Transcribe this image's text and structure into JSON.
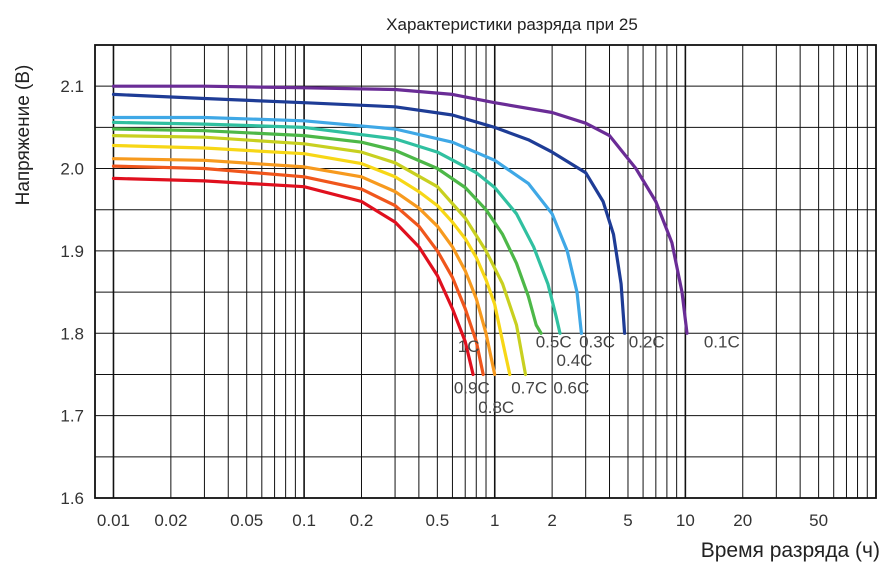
{
  "chart_data": {
    "type": "line",
    "title": "Характеристики разряда при 25",
    "xlabel": "Время разряда (ч)",
    "ylabel": "Напряжение (В)",
    "x_scale": "log",
    "xlim": [
      0.008,
      100
    ],
    "ylim": [
      1.6,
      2.15
    ],
    "grid": true,
    "legend": "none",
    "x_ticks": [
      {
        "v": 0.01,
        "label": "0.01"
      },
      {
        "v": 0.02,
        "label": "0.02"
      },
      {
        "v": 0.05,
        "label": "0.05"
      },
      {
        "v": 0.1,
        "label": "0.1"
      },
      {
        "v": 0.2,
        "label": "0.2"
      },
      {
        "v": 0.5,
        "label": "0.5"
      },
      {
        "v": 1,
        "label": "1"
      },
      {
        "v": 2,
        "label": "2"
      },
      {
        "v": 5,
        "label": "5"
      },
      {
        "v": 10,
        "label": "10"
      },
      {
        "v": 20,
        "label": "20"
      },
      {
        "v": 50,
        "label": "50"
      }
    ],
    "y_ticks": [
      {
        "v": 1.6,
        "label": "1.6"
      },
      {
        "v": 1.7,
        "label": "1.7"
      },
      {
        "v": 1.8,
        "label": "1.8"
      },
      {
        "v": 1.9,
        "label": "1.9"
      },
      {
        "v": 2.0,
        "label": "2.0"
      },
      {
        "v": 2.1,
        "label": "2.1"
      }
    ],
    "series": [
      {
        "name": "1C",
        "color": "#e0101e",
        "points": [
          [
            0.01,
            1.988
          ],
          [
            0.03,
            1.985
          ],
          [
            0.1,
            1.978
          ],
          [
            0.2,
            1.96
          ],
          [
            0.3,
            1.935
          ],
          [
            0.4,
            1.905
          ],
          [
            0.5,
            1.87
          ],
          [
            0.6,
            1.83
          ],
          [
            0.7,
            1.79
          ],
          [
            0.77,
            1.75
          ]
        ]
      },
      {
        "name": "0.9C",
        "color": "#f0561c",
        "points": [
          [
            0.01,
            2.003
          ],
          [
            0.03,
            2.0
          ],
          [
            0.1,
            1.99
          ],
          [
            0.2,
            1.975
          ],
          [
            0.3,
            1.955
          ],
          [
            0.4,
            1.93
          ],
          [
            0.5,
            1.9
          ],
          [
            0.6,
            1.868
          ],
          [
            0.7,
            1.83
          ],
          [
            0.8,
            1.79
          ],
          [
            0.87,
            1.75
          ]
        ]
      },
      {
        "name": "0.8C",
        "color": "#f79a1e",
        "points": [
          [
            0.01,
            2.012
          ],
          [
            0.03,
            2.01
          ],
          [
            0.1,
            2.002
          ],
          [
            0.2,
            1.99
          ],
          [
            0.3,
            1.972
          ],
          [
            0.4,
            1.952
          ],
          [
            0.5,
            1.93
          ],
          [
            0.6,
            1.905
          ],
          [
            0.7,
            1.876
          ],
          [
            0.8,
            1.842
          ],
          [
            0.9,
            1.8
          ],
          [
            1.0,
            1.75
          ]
        ]
      },
      {
        "name": "0.7C",
        "color": "#f7d716",
        "points": [
          [
            0.01,
            2.028
          ],
          [
            0.03,
            2.025
          ],
          [
            0.1,
            2.018
          ],
          [
            0.2,
            2.006
          ],
          [
            0.3,
            1.99
          ],
          [
            0.4,
            1.972
          ],
          [
            0.5,
            1.955
          ],
          [
            0.6,
            1.935
          ],
          [
            0.7,
            1.915
          ],
          [
            0.8,
            1.892
          ],
          [
            0.9,
            1.865
          ],
          [
            1.0,
            1.835
          ],
          [
            1.1,
            1.79
          ],
          [
            1.2,
            1.75
          ]
        ]
      },
      {
        "name": "0.6C",
        "color": "#c8d020",
        "points": [
          [
            0.01,
            2.04
          ],
          [
            0.03,
            2.038
          ],
          [
            0.1,
            2.03
          ],
          [
            0.2,
            2.02
          ],
          [
            0.3,
            2.007
          ],
          [
            0.5,
            1.978
          ],
          [
            0.7,
            1.94
          ],
          [
            0.9,
            1.9
          ],
          [
            1.1,
            1.86
          ],
          [
            1.3,
            1.81
          ],
          [
            1.45,
            1.75
          ]
        ]
      },
      {
        "name": "0.5C",
        "color": "#4db848",
        "points": [
          [
            0.01,
            2.048
          ],
          [
            0.03,
            2.046
          ],
          [
            0.1,
            2.04
          ],
          [
            0.2,
            2.032
          ],
          [
            0.3,
            2.022
          ],
          [
            0.5,
            2.0
          ],
          [
            0.7,
            1.977
          ],
          [
            0.9,
            1.95
          ],
          [
            1.1,
            1.92
          ],
          [
            1.3,
            1.885
          ],
          [
            1.5,
            1.845
          ],
          [
            1.65,
            1.81
          ],
          [
            1.75,
            1.8
          ]
        ]
      },
      {
        "name": "0.4C",
        "color": "#30c0a0",
        "points": [
          [
            0.01,
            2.056
          ],
          [
            0.03,
            2.054
          ],
          [
            0.1,
            2.05
          ],
          [
            0.3,
            2.036
          ],
          [
            0.5,
            2.02
          ],
          [
            0.8,
            1.995
          ],
          [
            1.0,
            1.977
          ],
          [
            1.3,
            1.945
          ],
          [
            1.6,
            1.905
          ],
          [
            1.9,
            1.86
          ],
          [
            2.1,
            1.82
          ],
          [
            2.2,
            1.8
          ]
        ]
      },
      {
        "name": "0.3C",
        "color": "#3fa8e6",
        "points": [
          [
            0.01,
            2.062
          ],
          [
            0.03,
            2.062
          ],
          [
            0.1,
            2.058
          ],
          [
            0.3,
            2.048
          ],
          [
            0.6,
            2.032
          ],
          [
            1.0,
            2.01
          ],
          [
            1.5,
            1.982
          ],
          [
            2.0,
            1.945
          ],
          [
            2.4,
            1.9
          ],
          [
            2.7,
            1.85
          ],
          [
            2.85,
            1.8
          ]
        ]
      },
      {
        "name": "0.2C",
        "color": "#1e3c96",
        "points": [
          [
            0.01,
            2.09
          ],
          [
            0.03,
            2.085
          ],
          [
            0.1,
            2.08
          ],
          [
            0.3,
            2.075
          ],
          [
            0.6,
            2.065
          ],
          [
            1.0,
            2.05
          ],
          [
            1.5,
            2.035
          ],
          [
            2.0,
            2.02
          ],
          [
            3.0,
            1.995
          ],
          [
            3.7,
            1.96
          ],
          [
            4.2,
            1.92
          ],
          [
            4.6,
            1.86
          ],
          [
            4.8,
            1.8
          ]
        ]
      },
      {
        "name": "0.1C",
        "color": "#6a2c96",
        "points": [
          [
            0.01,
            2.1
          ],
          [
            0.03,
            2.1
          ],
          [
            0.1,
            2.098
          ],
          [
            0.3,
            2.096
          ],
          [
            0.6,
            2.09
          ],
          [
            1.0,
            2.08
          ],
          [
            2.0,
            2.068
          ],
          [
            3.0,
            2.055
          ],
          [
            4.0,
            2.04
          ],
          [
            5.5,
            2.0
          ],
          [
            7.0,
            1.96
          ],
          [
            8.5,
            1.91
          ],
          [
            9.6,
            1.85
          ],
          [
            10.2,
            1.8
          ]
        ]
      }
    ],
    "annotations": [
      {
        "text": "1C",
        "x": 0.64,
        "y": 1.777
      },
      {
        "text": "0.9C",
        "x": 0.61,
        "y": 1.727
      },
      {
        "text": "0.8C",
        "x": 0.82,
        "y": 1.703
      },
      {
        "text": "0.7C",
        "x": 1.22,
        "y": 1.727
      },
      {
        "text": "0.6C",
        "x": 2.03,
        "y": 1.727
      },
      {
        "text": "0.5C",
        "x": 1.64,
        "y": 1.783
      },
      {
        "text": "0.4C",
        "x": 2.11,
        "y": 1.76
      },
      {
        "text": "0.3C",
        "x": 2.77,
        "y": 1.783
      },
      {
        "text": "0.2C",
        "x": 5.05,
        "y": 1.783
      },
      {
        "text": "0.1C",
        "x": 12.5,
        "y": 1.783
      }
    ]
  }
}
